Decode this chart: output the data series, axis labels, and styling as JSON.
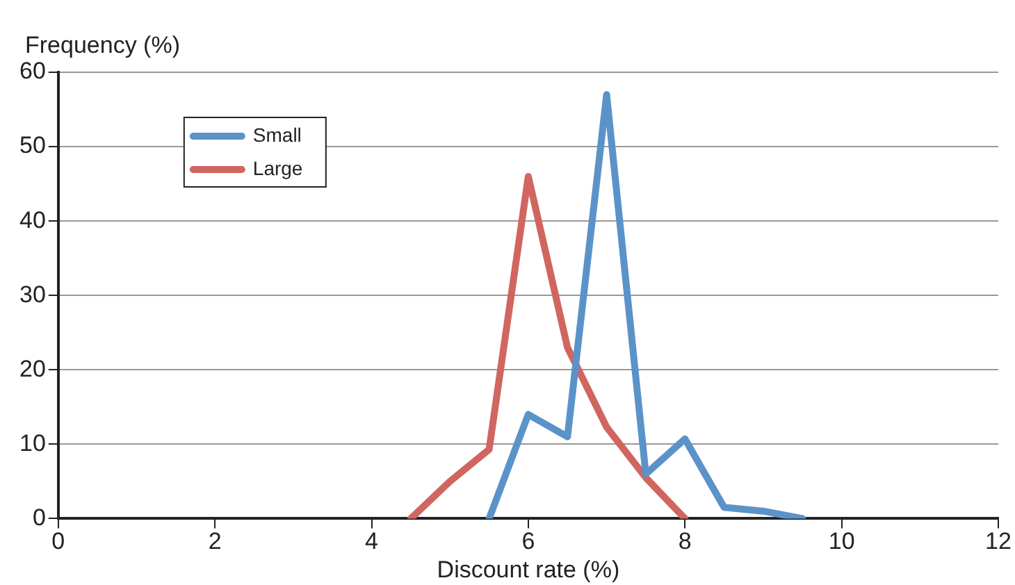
{
  "chart_data": {
    "type": "line",
    "xlabel": "Discount rate (%)",
    "ylabel": "Frequency (%)",
    "xlim": [
      0,
      12
    ],
    "xticks": [
      0,
      2,
      4,
      6,
      8,
      10,
      12
    ],
    "ylim": [
      0,
      60
    ],
    "yticks": [
      0,
      10,
      20,
      30,
      40,
      50,
      60
    ],
    "series": [
      {
        "name": "Small",
        "color": "#5b93c9",
        "x": [
          5.5,
          6,
          6.5,
          7,
          7.5,
          8,
          8.5,
          9,
          9.5
        ],
        "values": [
          0,
          14,
          11,
          57,
          6,
          10.7,
          1.5,
          1,
          0
        ]
      },
      {
        "name": "Large",
        "color": "#d0665f",
        "x": [
          4.5,
          5,
          5.5,
          6,
          6.5,
          7,
          7.5,
          8
        ],
        "values": [
          0,
          5,
          9.3,
          46,
          23,
          12.3,
          5.5,
          0
        ]
      }
    ],
    "grid": "y",
    "legend": "top left",
    "marker": "none",
    "line_style": "solid"
  }
}
